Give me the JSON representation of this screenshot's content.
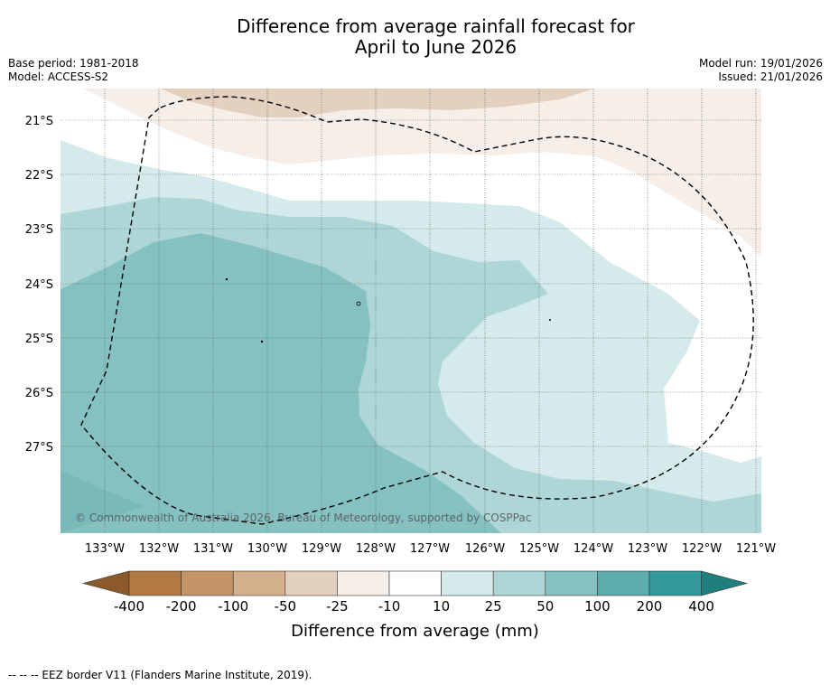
{
  "title_line1": "Difference from average rainfall forecast for",
  "title_line2": "April to June 2026",
  "base_period": "Base period: 1981-2018",
  "model": "Model: ACCESS-S2",
  "model_run": "Model run: 19/01/2026",
  "issued": "Issued: 21/01/2026",
  "copyright": "© Commonwealth of Australia 2026, Bureau of Meteorology, supported by COSPPac",
  "lat_labels": [
    "21°S",
    "22°S",
    "23°S",
    "24°S",
    "25°S",
    "26°S",
    "27°S"
  ],
  "lon_labels": [
    "133°W",
    "132°W",
    "131°W",
    "130°W",
    "129°W",
    "128°W",
    "127°W",
    "126°W",
    "125°W",
    "124°W",
    "123°W",
    "122°W",
    "121°W"
  ],
  "colorbar": {
    "label": "Difference from average (mm)",
    "ticks": [
      "-400",
      "-200",
      "-100",
      "-50",
      "-25",
      "-10",
      "10",
      "25",
      "50",
      "100",
      "200",
      "400"
    ],
    "colors": [
      "#8c5a2a",
      "#b07a42",
      "#c49468",
      "#d4b08c",
      "#e4d0be",
      "#f5eee9",
      "#ffffff",
      "#d5eaea",
      "#aed6d6",
      "#86c1c1",
      "#5eadad",
      "#349a9a",
      "#1f7f7f"
    ]
  },
  "footnote": "--  --  -- EEZ border V11 (Flanders Marine Institute, 2019)."
}
